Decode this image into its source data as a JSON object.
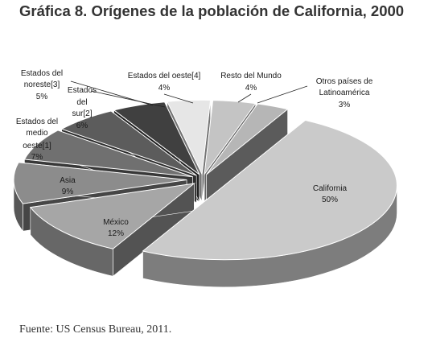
{
  "chart_data": {
    "type": "pie",
    "title": "Gráfica 8. Orígenes de la población de California, 2000",
    "source": "Fuente: US Census Bureau, 2011.",
    "slices": [
      {
        "label": "California",
        "value": 50,
        "value_label": "50%",
        "color": "#cacaca"
      },
      {
        "label": "México",
        "value": 12,
        "value_label": "12%",
        "color": "#a6a6a6"
      },
      {
        "label": "Asia",
        "value": 9,
        "value_label": "9%",
        "color": "#8c8c8c"
      },
      {
        "label": "Estados del medio oeste[1]",
        "value": 7,
        "value_label": "7%",
        "color": "#707070"
      },
      {
        "label": "Estados del sur[2]",
        "value": 6,
        "value_label": "6%",
        "color": "#5c5c5c"
      },
      {
        "label": "Estados del noreste[3]",
        "value": 5,
        "value_label": "5%",
        "color": "#404040"
      },
      {
        "label": "Estados del oeste[4]",
        "value": 4,
        "value_label": "4%",
        "color": "#e6e6e6"
      },
      {
        "label": "Resto del Mundo",
        "value": 4,
        "value_label": "4%",
        "color": "#c4c4c4"
      },
      {
        "label": "Otros países de Latinoamérica",
        "value": 3,
        "value_label": "3%",
        "color": "#b6b6b6"
      }
    ]
  }
}
